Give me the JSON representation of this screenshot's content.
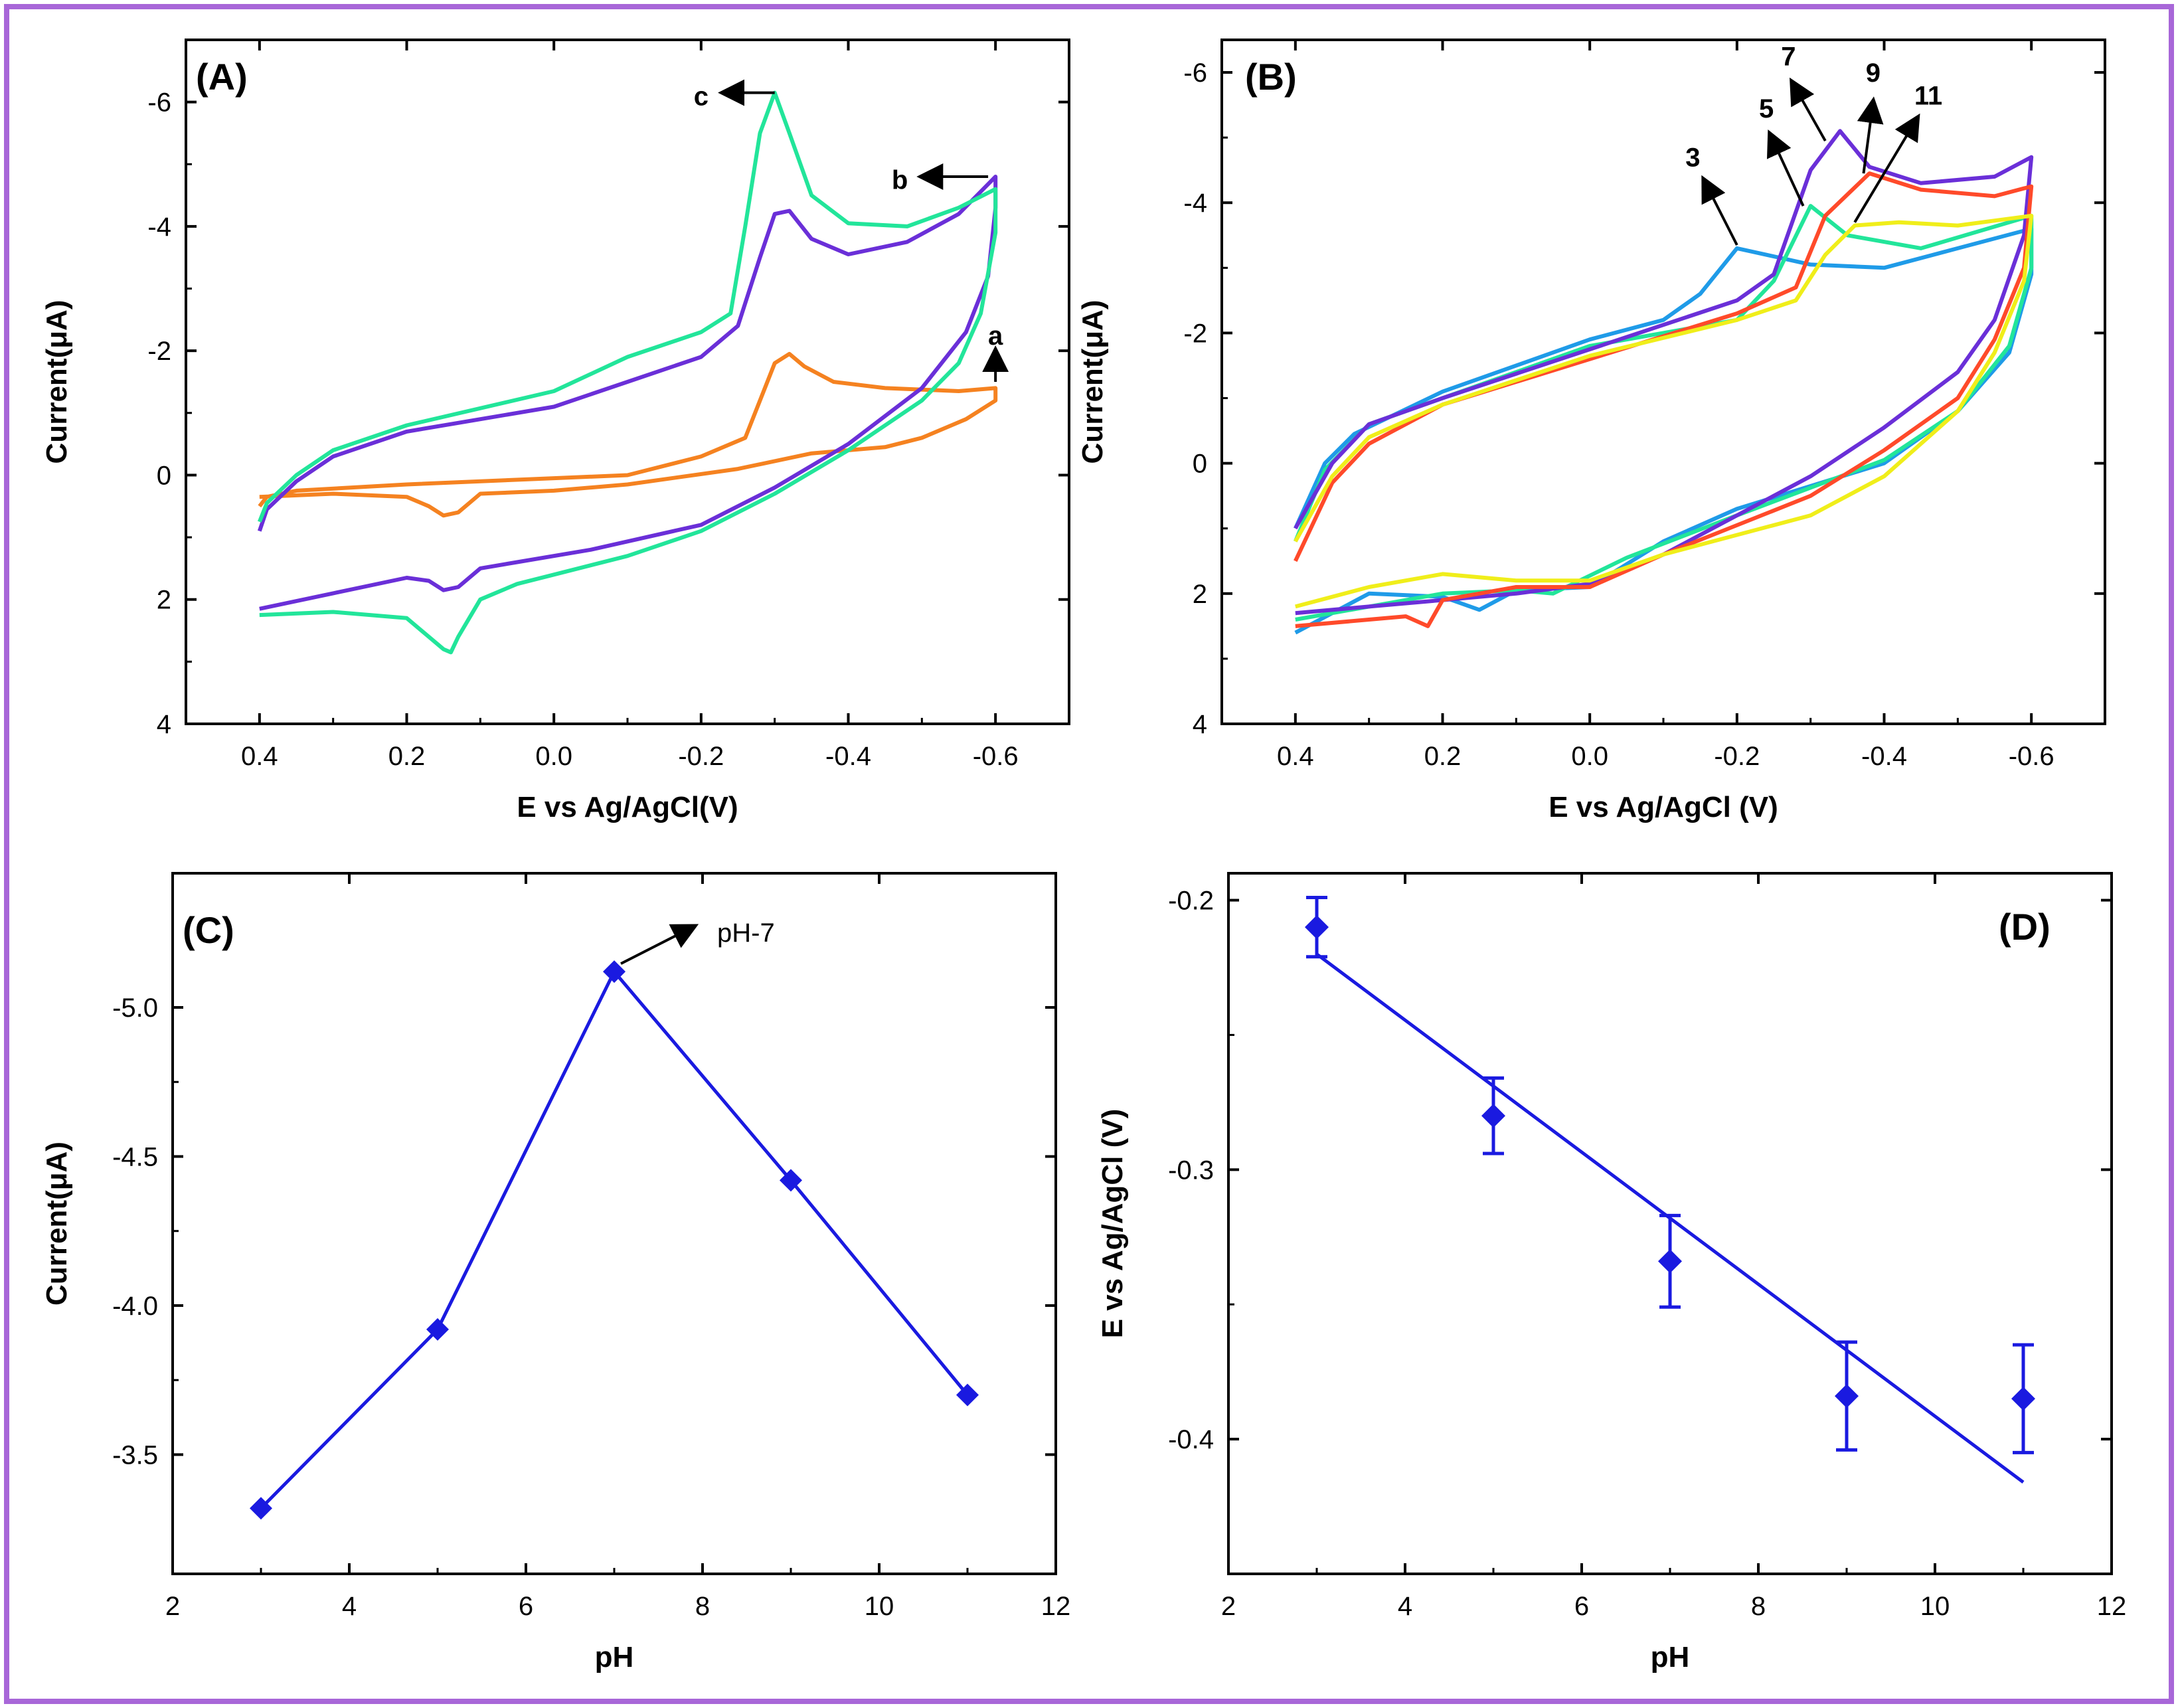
{
  "colors": {
    "frame": "#a867d8",
    "orange": "#f58220",
    "purple": "#6a2fd8",
    "green": "#22e59a",
    "blue": "#1f9be8",
    "red": "#ff4a2a",
    "yellow": "#f0ee1a",
    "blue_line": "#1a1ae0",
    "arrow": "#000000"
  },
  "chart_data": [
    {
      "id": "A",
      "type": "line",
      "panel_label": "(A)",
      "xlabel": "E vs Ag/AgCl(V)",
      "ylabel": "Current(μA)",
      "xlim": [
        0.5,
        -0.7
      ],
      "ylim": [
        4,
        -7
      ],
      "x_ticks": [
        0.4,
        0.2,
        0.0,
        -0.2,
        -0.4,
        -0.6
      ],
      "x_tick_labels": [
        "0.4",
        "0.2",
        "0.0",
        "-0.2",
        "-0.4",
        "-0.6"
      ],
      "y_ticks": [
        -6,
        -4,
        -2,
        0,
        2,
        4
      ],
      "y_tick_labels": [
        "-6",
        "-4",
        "-2",
        "0",
        "2",
        "4"
      ],
      "series": [
        {
          "name": "a",
          "color_key": "orange",
          "points": [
            [
              0.4,
              0.5
            ],
            [
              0.39,
              0.35
            ],
            [
              0.35,
              0.25
            ],
            [
              0.2,
              0.15
            ],
            [
              0.0,
              0.05
            ],
            [
              -0.1,
              0.0
            ],
            [
              -0.2,
              -0.3
            ],
            [
              -0.26,
              -0.6
            ],
            [
              -0.28,
              -1.2
            ],
            [
              -0.3,
              -1.8
            ],
            [
              -0.32,
              -1.95
            ],
            [
              -0.34,
              -1.75
            ],
            [
              -0.38,
              -1.5
            ],
            [
              -0.45,
              -1.4
            ],
            [
              -0.55,
              -1.35
            ],
            [
              -0.6,
              -1.4
            ],
            [
              -0.6,
              -1.2
            ],
            [
              -0.56,
              -0.9
            ],
            [
              -0.5,
              -0.6
            ],
            [
              -0.45,
              -0.45
            ],
            [
              -0.35,
              -0.35
            ],
            [
              -0.25,
              -0.1
            ],
            [
              -0.1,
              0.15
            ],
            [
              0.0,
              0.25
            ],
            [
              0.1,
              0.3
            ],
            [
              0.13,
              0.6
            ],
            [
              0.15,
              0.65
            ],
            [
              0.17,
              0.5
            ],
            [
              0.2,
              0.35
            ],
            [
              0.3,
              0.3
            ],
            [
              0.4,
              0.35
            ]
          ]
        },
        {
          "name": "b",
          "color_key": "purple",
          "points": [
            [
              0.4,
              0.9
            ],
            [
              0.39,
              0.55
            ],
            [
              0.35,
              0.1
            ],
            [
              0.3,
              -0.3
            ],
            [
              0.2,
              -0.7
            ],
            [
              0.0,
              -1.1
            ],
            [
              -0.1,
              -1.5
            ],
            [
              -0.2,
              -1.9
            ],
            [
              -0.25,
              -2.4
            ],
            [
              -0.28,
              -3.5
            ],
            [
              -0.3,
              -4.2
            ],
            [
              -0.32,
              -4.25
            ],
            [
              -0.35,
              -3.8
            ],
            [
              -0.4,
              -3.55
            ],
            [
              -0.48,
              -3.75
            ],
            [
              -0.55,
              -4.2
            ],
            [
              -0.6,
              -4.8
            ],
            [
              -0.6,
              -4.3
            ],
            [
              -0.59,
              -3.2
            ],
            [
              -0.56,
              -2.3
            ],
            [
              -0.5,
              -1.4
            ],
            [
              -0.4,
              -0.5
            ],
            [
              -0.3,
              0.2
            ],
            [
              -0.2,
              0.8
            ],
            [
              -0.05,
              1.2
            ],
            [
              0.05,
              1.4
            ],
            [
              0.1,
              1.5
            ],
            [
              0.13,
              1.8
            ],
            [
              0.15,
              1.85
            ],
            [
              0.17,
              1.7
            ],
            [
              0.2,
              1.65
            ],
            [
              0.3,
              1.9
            ],
            [
              0.4,
              2.15
            ]
          ]
        },
        {
          "name": "c",
          "color_key": "green",
          "points": [
            [
              0.4,
              0.75
            ],
            [
              0.39,
              0.45
            ],
            [
              0.35,
              0.0
            ],
            [
              0.3,
              -0.4
            ],
            [
              0.2,
              -0.8
            ],
            [
              0.0,
              -1.35
            ],
            [
              -0.1,
              -1.9
            ],
            [
              -0.2,
              -2.3
            ],
            [
              -0.24,
              -2.6
            ],
            [
              -0.26,
              -4.0
            ],
            [
              -0.28,
              -5.5
            ],
            [
              -0.3,
              -6.15
            ],
            [
              -0.32,
              -5.5
            ],
            [
              -0.35,
              -4.5
            ],
            [
              -0.4,
              -4.05
            ],
            [
              -0.48,
              -4.0
            ],
            [
              -0.55,
              -4.3
            ],
            [
              -0.6,
              -4.6
            ],
            [
              -0.6,
              -3.9
            ],
            [
              -0.58,
              -2.6
            ],
            [
              -0.55,
              -1.8
            ],
            [
              -0.5,
              -1.2
            ],
            [
              -0.4,
              -0.4
            ],
            [
              -0.3,
              0.3
            ],
            [
              -0.2,
              0.9
            ],
            [
              -0.1,
              1.3
            ],
            [
              0.0,
              1.6
            ],
            [
              0.05,
              1.75
            ],
            [
              0.1,
              2.0
            ],
            [
              0.13,
              2.6
            ],
            [
              0.14,
              2.85
            ],
            [
              0.15,
              2.8
            ],
            [
              0.2,
              2.3
            ],
            [
              0.3,
              2.2
            ],
            [
              0.4,
              2.25
            ]
          ]
        }
      ],
      "annotations": [
        {
          "text": "a",
          "x": -0.6,
          "y": -2.25
        },
        {
          "text": "b",
          "x": -0.47,
          "y": -4.75
        },
        {
          "text": "c",
          "x": -0.2,
          "y": -6.1
        }
      ]
    },
    {
      "id": "B",
      "type": "line",
      "panel_label": "(B)",
      "xlabel": "E vs Ag/AgCl (V)",
      "ylabel": "Current(μA)",
      "xlim": [
        0.5,
        -0.7
      ],
      "ylim": [
        4,
        -6.5
      ],
      "x_ticks": [
        0.4,
        0.2,
        0.0,
        -0.2,
        -0.4,
        -0.6
      ],
      "x_tick_labels": [
        "0.4",
        "0.2",
        "0.0",
        "-0.2",
        "-0.4",
        "-0.6"
      ],
      "y_ticks": [
        -6,
        -4,
        -2,
        0,
        2,
        4
      ],
      "y_tick_labels": [
        "-6",
        "-4",
        "-2",
        "0",
        "2",
        "4"
      ],
      "series": [
        {
          "name": "3",
          "color_key": "blue",
          "points": [
            [
              0.4,
              1.0
            ],
            [
              0.36,
              0.0
            ],
            [
              0.32,
              -0.45
            ],
            [
              0.2,
              -1.1
            ],
            [
              0.0,
              -1.9
            ],
            [
              -0.1,
              -2.2
            ],
            [
              -0.15,
              -2.6
            ],
            [
              -0.2,
              -3.3
            ],
            [
              -0.24,
              -3.2
            ],
            [
              -0.3,
              -3.05
            ],
            [
              -0.4,
              -3.0
            ],
            [
              -0.5,
              -3.3
            ],
            [
              -0.6,
              -3.6
            ],
            [
              -0.6,
              -2.9
            ],
            [
              -0.57,
              -1.7
            ],
            [
              -0.5,
              -0.8
            ],
            [
              -0.4,
              0.0
            ],
            [
              -0.2,
              0.7
            ],
            [
              -0.1,
              1.2
            ],
            [
              0.0,
              1.9
            ],
            [
              0.1,
              1.95
            ],
            [
              0.15,
              2.25
            ],
            [
              0.2,
              2.05
            ],
            [
              0.3,
              2.0
            ],
            [
              0.4,
              2.6
            ]
          ]
        },
        {
          "name": "5",
          "color_key": "green",
          "points": [
            [
              0.4,
              1.2
            ],
            [
              0.36,
              0.1
            ],
            [
              0.3,
              -0.6
            ],
            [
              0.2,
              -1.0
            ],
            [
              0.0,
              -1.8
            ],
            [
              -0.2,
              -2.2
            ],
            [
              -0.25,
              -2.8
            ],
            [
              -0.3,
              -3.95
            ],
            [
              -0.35,
              -3.5
            ],
            [
              -0.45,
              -3.3
            ],
            [
              -0.6,
              -3.8
            ],
            [
              -0.6,
              -3.0
            ],
            [
              -0.57,
              -1.8
            ],
            [
              -0.5,
              -0.8
            ],
            [
              -0.4,
              -0.05
            ],
            [
              -0.2,
              0.8
            ],
            [
              -0.05,
              1.45
            ],
            [
              0.05,
              2.0
            ],
            [
              0.1,
              1.95
            ],
            [
              0.2,
              2.0
            ],
            [
              0.3,
              2.2
            ],
            [
              0.4,
              2.4
            ]
          ]
        },
        {
          "name": "7",
          "color_key": "purple",
          "points": [
            [
              0.4,
              1.0
            ],
            [
              0.35,
              0.0
            ],
            [
              0.3,
              -0.6
            ],
            [
              0.2,
              -1.0
            ],
            [
              0.0,
              -1.75
            ],
            [
              -0.2,
              -2.5
            ],
            [
              -0.25,
              -2.9
            ],
            [
              -0.3,
              -4.5
            ],
            [
              -0.34,
              -5.1
            ],
            [
              -0.38,
              -4.55
            ],
            [
              -0.45,
              -4.3
            ],
            [
              -0.55,
              -4.4
            ],
            [
              -0.6,
              -4.7
            ],
            [
              -0.59,
              -3.5
            ],
            [
              -0.55,
              -2.2
            ],
            [
              -0.5,
              -1.4
            ],
            [
              -0.4,
              -0.55
            ],
            [
              -0.3,
              0.2
            ],
            [
              -0.1,
              1.4
            ],
            [
              0.0,
              1.85
            ],
            [
              0.1,
              2.0
            ],
            [
              0.2,
              2.1
            ],
            [
              0.3,
              2.2
            ],
            [
              0.4,
              2.3
            ]
          ]
        },
        {
          "name": "9",
          "color_key": "red",
          "points": [
            [
              0.4,
              1.5
            ],
            [
              0.35,
              0.3
            ],
            [
              0.3,
              -0.3
            ],
            [
              0.2,
              -0.9
            ],
            [
              0.0,
              -1.6
            ],
            [
              -0.2,
              -2.3
            ],
            [
              -0.28,
              -2.7
            ],
            [
              -0.32,
              -3.8
            ],
            [
              -0.38,
              -4.45
            ],
            [
              -0.45,
              -4.2
            ],
            [
              -0.55,
              -4.1
            ],
            [
              -0.6,
              -4.25
            ],
            [
              -0.59,
              -3.0
            ],
            [
              -0.55,
              -1.9
            ],
            [
              -0.5,
              -1.0
            ],
            [
              -0.4,
              -0.2
            ],
            [
              -0.3,
              0.5
            ],
            [
              -0.1,
              1.4
            ],
            [
              0.0,
              1.9
            ],
            [
              0.1,
              1.9
            ],
            [
              0.2,
              2.1
            ],
            [
              0.22,
              2.5
            ],
            [
              0.25,
              2.35
            ],
            [
              0.3,
              2.4
            ],
            [
              0.4,
              2.5
            ]
          ]
        },
        {
          "name": "11",
          "color_key": "yellow",
          "points": [
            [
              0.4,
              1.2
            ],
            [
              0.35,
              0.2
            ],
            [
              0.3,
              -0.4
            ],
            [
              0.2,
              -0.9
            ],
            [
              0.0,
              -1.65
            ],
            [
              -0.2,
              -2.2
            ],
            [
              -0.28,
              -2.5
            ],
            [
              -0.32,
              -3.2
            ],
            [
              -0.36,
              -3.65
            ],
            [
              -0.42,
              -3.7
            ],
            [
              -0.5,
              -3.65
            ],
            [
              -0.6,
              -3.8
            ],
            [
              -0.59,
              -2.8
            ],
            [
              -0.55,
              -1.7
            ],
            [
              -0.5,
              -0.8
            ],
            [
              -0.4,
              0.2
            ],
            [
              -0.3,
              0.8
            ],
            [
              -0.1,
              1.4
            ],
            [
              0.0,
              1.8
            ],
            [
              0.1,
              1.8
            ],
            [
              0.2,
              1.7
            ],
            [
              0.3,
              1.9
            ],
            [
              0.4,
              2.2
            ]
          ]
        }
      ],
      "annotations": [
        {
          "text": "3",
          "x": -0.14,
          "y": -4.7
        },
        {
          "text": "5",
          "x": -0.24,
          "y": -5.45
        },
        {
          "text": "7",
          "x": -0.27,
          "y": -6.25
        },
        {
          "text": "9",
          "x": -0.385,
          "y": -6.0
        },
        {
          "text": "11",
          "x": -0.46,
          "y": -5.65
        }
      ]
    },
    {
      "id": "C",
      "type": "line",
      "panel_label": "(C)",
      "xlabel": "pH",
      "ylabel": "Current(μA)",
      "xlim": [
        2,
        12
      ],
      "ylim": [
        -3.1,
        -5.45
      ],
      "x_ticks": [
        2,
        4,
        6,
        8,
        10,
        12
      ],
      "x_tick_labels": [
        "2",
        "4",
        "6",
        "8",
        "10",
        "12"
      ],
      "y_ticks": [
        -3.5,
        -4.0,
        -4.5,
        -5.0
      ],
      "y_tick_labels": [
        "-3.5",
        "-4.0",
        "-4.5",
        "-5.0"
      ],
      "x": [
        3,
        5,
        7,
        9,
        11
      ],
      "y": [
        -3.32,
        -3.92,
        -5.12,
        -4.42,
        -3.7
      ],
      "annotation": "pH-7"
    },
    {
      "id": "D",
      "type": "scatter",
      "panel_label": "(D)",
      "xlabel": "pH",
      "ylabel": "E vs Ag/AgCl (V)",
      "xlim": [
        2,
        12
      ],
      "ylim": [
        -0.45,
        -0.19
      ],
      "x_ticks": [
        2,
        4,
        6,
        8,
        10,
        12
      ],
      "x_tick_labels": [
        "2",
        "4",
        "6",
        "8",
        "10",
        "12"
      ],
      "y_ticks": [
        -0.2,
        -0.3,
        -0.4
      ],
      "y_tick_labels": [
        "-0.2",
        "-0.3",
        "-0.4"
      ],
      "x": [
        3,
        5,
        7,
        9,
        11
      ],
      "y": [
        -0.21,
        -0.28,
        -0.334,
        -0.384,
        -0.385
      ],
      "error": [
        0.011,
        0.014,
        0.017,
        0.02,
        0.02
      ],
      "fit_line": {
        "x": [
          3,
          11
        ],
        "y": [
          -0.22,
          -0.416
        ]
      }
    }
  ]
}
